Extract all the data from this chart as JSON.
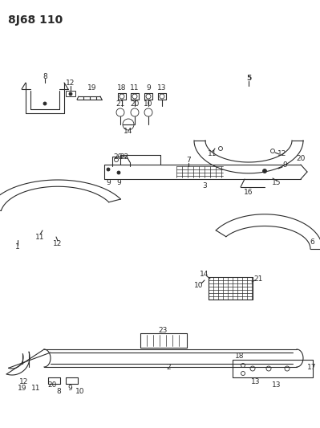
{
  "title": "8J68 110",
  "bg_color": "#ffffff",
  "line_color": "#2a2a2a",
  "title_fontsize": 10,
  "label_fontsize": 6.5,
  "fig_width": 3.99,
  "fig_height": 5.33,
  "dpi": 100
}
